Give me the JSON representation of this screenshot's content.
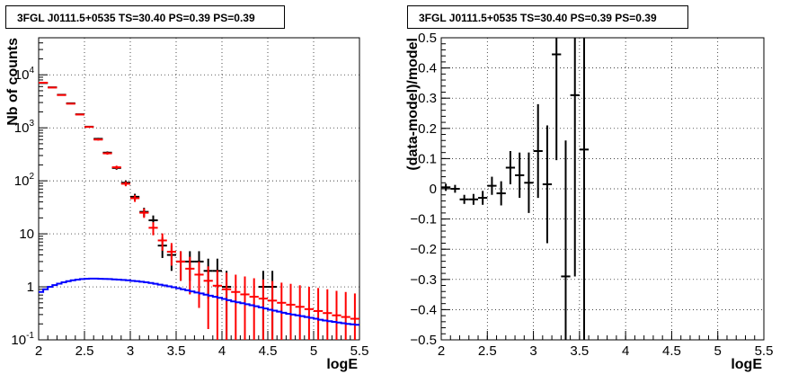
{
  "chart_data": [
    {
      "type": "scatter",
      "title": "3FGL J0111.5+0535 TS=30.40 PS=0.39 PS=0.39",
      "xlabel": "logE",
      "ylabel": "Nb of counts",
      "xlim": [
        2,
        5.5
      ],
      "ylim": [
        0.1,
        50000
      ],
      "yscale": "log",
      "grid": true,
      "x_ticks": [
        "2",
        "2.5",
        "3",
        "3.5",
        "4",
        "4.5",
        "5",
        "5.5"
      ],
      "y_ticks": [
        {
          "value": 0.1,
          "label": "10",
          "exp": "-1"
        },
        {
          "value": 1,
          "label": "1",
          "exp": ""
        },
        {
          "value": 10,
          "label": "10",
          "exp": ""
        },
        {
          "value": 100,
          "label": "10",
          "exp": "2"
        },
        {
          "value": 1000,
          "label": "10",
          "exp": "3"
        },
        {
          "value": 10000,
          "label": "10",
          "exp": "4"
        }
      ],
      "series": [
        {
          "color": "#000000",
          "style": "errorbar",
          "points": [
            {
              "x": 2.05,
              "y": 7000,
              "yerr_low": 80,
              "yerr_high": 80
            },
            {
              "x": 2.15,
              "y": 5800,
              "yerr_low": 75,
              "yerr_high": 75
            },
            {
              "x": 2.25,
              "y": 4200,
              "yerr_low": 65,
              "yerr_high": 65
            },
            {
              "x": 2.35,
              "y": 2900,
              "yerr_low": 54,
              "yerr_high": 54
            },
            {
              "x": 2.45,
              "y": 1800,
              "yerr_low": 42,
              "yerr_high": 42
            },
            {
              "x": 2.55,
              "y": 1050,
              "yerr_low": 32,
              "yerr_high": 32
            },
            {
              "x": 2.65,
              "y": 620,
              "yerr_low": 25,
              "yerr_high": 25
            },
            {
              "x": 2.75,
              "y": 340,
              "yerr_low": 18,
              "yerr_high": 18
            },
            {
              "x": 2.85,
              "y": 175,
              "yerr_low": 13,
              "yerr_high": 13
            },
            {
              "x": 2.95,
              "y": 92,
              "yerr_low": 10,
              "yerr_high": 10
            },
            {
              "x": 3.05,
              "y": 50,
              "yerr_low": 7,
              "yerr_high": 7
            },
            {
              "x": 3.15,
              "y": 26,
              "yerr_low": 5,
              "yerr_high": 5
            },
            {
              "x": 3.25,
              "y": 18,
              "yerr_low": 4.2,
              "yerr_high": 4.2
            },
            {
              "x": 3.35,
              "y": 6,
              "yerr_low": 2.5,
              "yerr_high": 2.5
            },
            {
              "x": 3.45,
              "y": 4,
              "yerr_low": 2,
              "yerr_high": 2
            },
            {
              "x": 3.55,
              "y": 3,
              "yerr_low": 1.7,
              "yerr_high": 1.7
            },
            {
              "x": 3.65,
              "y": 3,
              "yerr_low": 1.7,
              "yerr_high": 1.7
            },
            {
              "x": 3.75,
              "y": 3,
              "yerr_low": 1.7,
              "yerr_high": 1.7
            },
            {
              "x": 3.85,
              "y": 2,
              "yerr_low": 1.4,
              "yerr_high": 1.4
            },
            {
              "x": 3.95,
              "y": 2,
              "yerr_low": 1.4,
              "yerr_high": 1.4
            },
            {
              "x": 4.05,
              "y": 1,
              "yerr_low": 0.9,
              "yerr_high": 1
            },
            {
              "x": 4.45,
              "y": 1,
              "yerr_low": 0.9,
              "yerr_high": 1
            },
            {
              "x": 4.55,
              "y": 1,
              "yerr_low": 0.9,
              "yerr_high": 1
            }
          ]
        },
        {
          "color": "#ff0000",
          "style": "errorbar",
          "points": [
            {
              "x": 2.05,
              "y": 7100,
              "yerr_low": 80,
              "yerr_high": 80
            },
            {
              "x": 2.15,
              "y": 5750,
              "yerr_low": 75,
              "yerr_high": 75
            },
            {
              "x": 2.25,
              "y": 4150,
              "yerr_low": 65,
              "yerr_high": 65
            },
            {
              "x": 2.35,
              "y": 2850,
              "yerr_low": 54,
              "yerr_high": 54
            },
            {
              "x": 2.45,
              "y": 1780,
              "yerr_low": 42,
              "yerr_high": 42
            },
            {
              "x": 2.55,
              "y": 1040,
              "yerr_low": 32,
              "yerr_high": 32
            },
            {
              "x": 2.65,
              "y": 600,
              "yerr_low": 25,
              "yerr_high": 25
            },
            {
              "x": 2.75,
              "y": 330,
              "yerr_low": 18,
              "yerr_high": 18
            },
            {
              "x": 2.85,
              "y": 180,
              "yerr_low": 13,
              "yerr_high": 13
            },
            {
              "x": 2.95,
              "y": 88,
              "yerr_low": 9,
              "yerr_high": 9
            },
            {
              "x": 3.05,
              "y": 47,
              "yerr_low": 7,
              "yerr_high": 7
            },
            {
              "x": 3.15,
              "y": 25,
              "yerr_low": 5,
              "yerr_high": 5
            },
            {
              "x": 3.25,
              "y": 13,
              "yerr_low": 3.6,
              "yerr_high": 3.6
            },
            {
              "x": 3.35,
              "y": 7.5,
              "yerr_low": 2.7,
              "yerr_high": 2.7
            },
            {
              "x": 3.45,
              "y": 4.6,
              "yerr_low": 2.1,
              "yerr_high": 2.1
            },
            {
              "x": 3.55,
              "y": 3,
              "yerr_low": 1.7,
              "yerr_high": 1.7
            },
            {
              "x": 3.65,
              "y": 2.2,
              "yerr_low": 1.48,
              "yerr_high": 1.48
            },
            {
              "x": 3.75,
              "y": 1.7,
              "yerr_low": 1.3,
              "yerr_high": 1.3
            },
            {
              "x": 3.85,
              "y": 1.3,
              "yerr_low": 1.14,
              "yerr_high": 1.14
            },
            {
              "x": 3.95,
              "y": 1.05,
              "yerr_low": 0.95,
              "yerr_high": 1.02
            },
            {
              "x": 4.05,
              "y": 0.9,
              "yerr_low": 0.8,
              "yerr_high": 0.95
            },
            {
              "x": 4.15,
              "y": 0.8,
              "yerr_low": 0.7,
              "yerr_high": 0.9
            },
            {
              "x": 4.25,
              "y": 0.72,
              "yerr_low": 0.62,
              "yerr_high": 0.85
            },
            {
              "x": 4.35,
              "y": 0.65,
              "yerr_low": 0.55,
              "yerr_high": 0.8
            },
            {
              "x": 4.45,
              "y": 0.6,
              "yerr_low": 0.5,
              "yerr_high": 0.78
            },
            {
              "x": 4.55,
              "y": 0.55,
              "yerr_low": 0.45,
              "yerr_high": 0.74
            },
            {
              "x": 4.65,
              "y": 0.5,
              "yerr_low": 0.4,
              "yerr_high": 0.7
            },
            {
              "x": 4.75,
              "y": 0.46,
              "yerr_low": 0.36,
              "yerr_high": 0.68
            },
            {
              "x": 4.85,
              "y": 0.42,
              "yerr_low": 0.32,
              "yerr_high": 0.65
            },
            {
              "x": 4.95,
              "y": 0.38,
              "yerr_low": 0.28,
              "yerr_high": 0.62
            },
            {
              "x": 5.05,
              "y": 0.35,
              "yerr_low": 0.25,
              "yerr_high": 0.6
            },
            {
              "x": 5.15,
              "y": 0.32,
              "yerr_low": 0.22,
              "yerr_high": 0.58
            },
            {
              "x": 5.25,
              "y": 0.29,
              "yerr_low": 0.19,
              "yerr_high": 0.55
            },
            {
              "x": 5.35,
              "y": 0.27,
              "yerr_low": 0.17,
              "yerr_high": 0.53
            },
            {
              "x": 5.45,
              "y": 0.25,
              "yerr_low": 0.15,
              "yerr_high": 0.5
            }
          ]
        },
        {
          "color": "#0000ff",
          "style": "step",
          "bin_width": 0.05,
          "x": [
            2.025,
            2.075,
            2.125,
            2.175,
            2.225,
            2.275,
            2.325,
            2.375,
            2.425,
            2.475,
            2.525,
            2.575,
            2.625,
            2.675,
            2.725,
            2.775,
            2.825,
            2.875,
            2.925,
            2.975,
            3.025,
            3.075,
            3.125,
            3.175,
            3.225,
            3.275,
            3.325,
            3.375,
            3.425,
            3.475,
            3.525,
            3.575,
            3.625,
            3.675,
            3.725,
            3.775,
            3.825,
            3.875,
            3.925,
            3.975,
            4.025,
            4.075,
            4.125,
            4.175,
            4.225,
            4.275,
            4.325,
            4.375,
            4.425,
            4.475,
            4.525,
            4.575,
            4.625,
            4.675,
            4.725,
            4.775,
            4.825,
            4.875,
            4.925,
            4.975,
            5.025,
            5.075,
            5.125,
            5.175,
            5.225,
            5.275,
            5.325,
            5.375,
            5.425,
            5.475
          ],
          "y": [
            0.8,
            0.9,
            1.0,
            1.08,
            1.15,
            1.22,
            1.28,
            1.33,
            1.37,
            1.4,
            1.42,
            1.43,
            1.43,
            1.42,
            1.41,
            1.4,
            1.38,
            1.37,
            1.35,
            1.33,
            1.3,
            1.28,
            1.25,
            1.22,
            1.18,
            1.14,
            1.1,
            1.06,
            1.02,
            0.98,
            0.94,
            0.9,
            0.86,
            0.82,
            0.78,
            0.75,
            0.71,
            0.68,
            0.65,
            0.62,
            0.59,
            0.56,
            0.53,
            0.51,
            0.49,
            0.47,
            0.45,
            0.43,
            0.41,
            0.39,
            0.37,
            0.355,
            0.34,
            0.325,
            0.31,
            0.3,
            0.29,
            0.28,
            0.27,
            0.26,
            0.25,
            0.24,
            0.232,
            0.225,
            0.218,
            0.212,
            0.206,
            0.2,
            0.196,
            0.192
          ]
        }
      ]
    },
    {
      "type": "scatter",
      "title": "3FGL J0111.5+0535 TS=30.40 PS=0.39 PS=0.39",
      "xlabel": "logE",
      "ylabel": "(data-model)/model",
      "xlim": [
        2,
        5.5
      ],
      "ylim": [
        -0.5,
        0.5
      ],
      "grid": true,
      "x_ticks": [
        "2",
        "2.5",
        "3",
        "3.5",
        "4",
        "4.5",
        "5",
        "5.5"
      ],
      "y_ticks": [
        "-0.5",
        "-0.4",
        "-0.3",
        "-0.2",
        "-0.1",
        "0",
        "0.1",
        "0.2",
        "0.3",
        "0.4",
        "0.5"
      ],
      "series": [
        {
          "color": "#000000",
          "style": "errorbar",
          "points": [
            {
              "x": 2.05,
              "y": 0.005,
              "yerr": 0.012
            },
            {
              "x": 2.15,
              "y": 0.0,
              "yerr": 0.013
            },
            {
              "x": 2.25,
              "y": -0.035,
              "yerr": 0.015
            },
            {
              "x": 2.35,
              "y": -0.035,
              "yerr": 0.018
            },
            {
              "x": 2.45,
              "y": -0.03,
              "yerr": 0.023
            },
            {
              "x": 2.55,
              "y": 0.01,
              "yerr": 0.03
            },
            {
              "x": 2.65,
              "y": -0.015,
              "yerr": 0.04
            },
            {
              "x": 2.75,
              "y": 0.07,
              "yerr": 0.055
            },
            {
              "x": 2.85,
              "y": 0.045,
              "yerr": 0.075
            },
            {
              "x": 2.95,
              "y": 0.02,
              "yerr": 0.1
            },
            {
              "x": 3.05,
              "y": 0.125,
              "yerr": 0.155
            },
            {
              "x": 3.15,
              "y": 0.015,
              "yerr": 0.195
            },
            {
              "x": 3.25,
              "y": 0.445,
              "yerr": 0.35
            },
            {
              "x": 3.35,
              "y": -0.29,
              "yerr": 0.45
            },
            {
              "x": 3.45,
              "y": 0.31,
              "yerr": 0.6
            },
            {
              "x": 3.55,
              "y": 0.13,
              "yerr": 0.75
            }
          ]
        }
      ]
    }
  ]
}
